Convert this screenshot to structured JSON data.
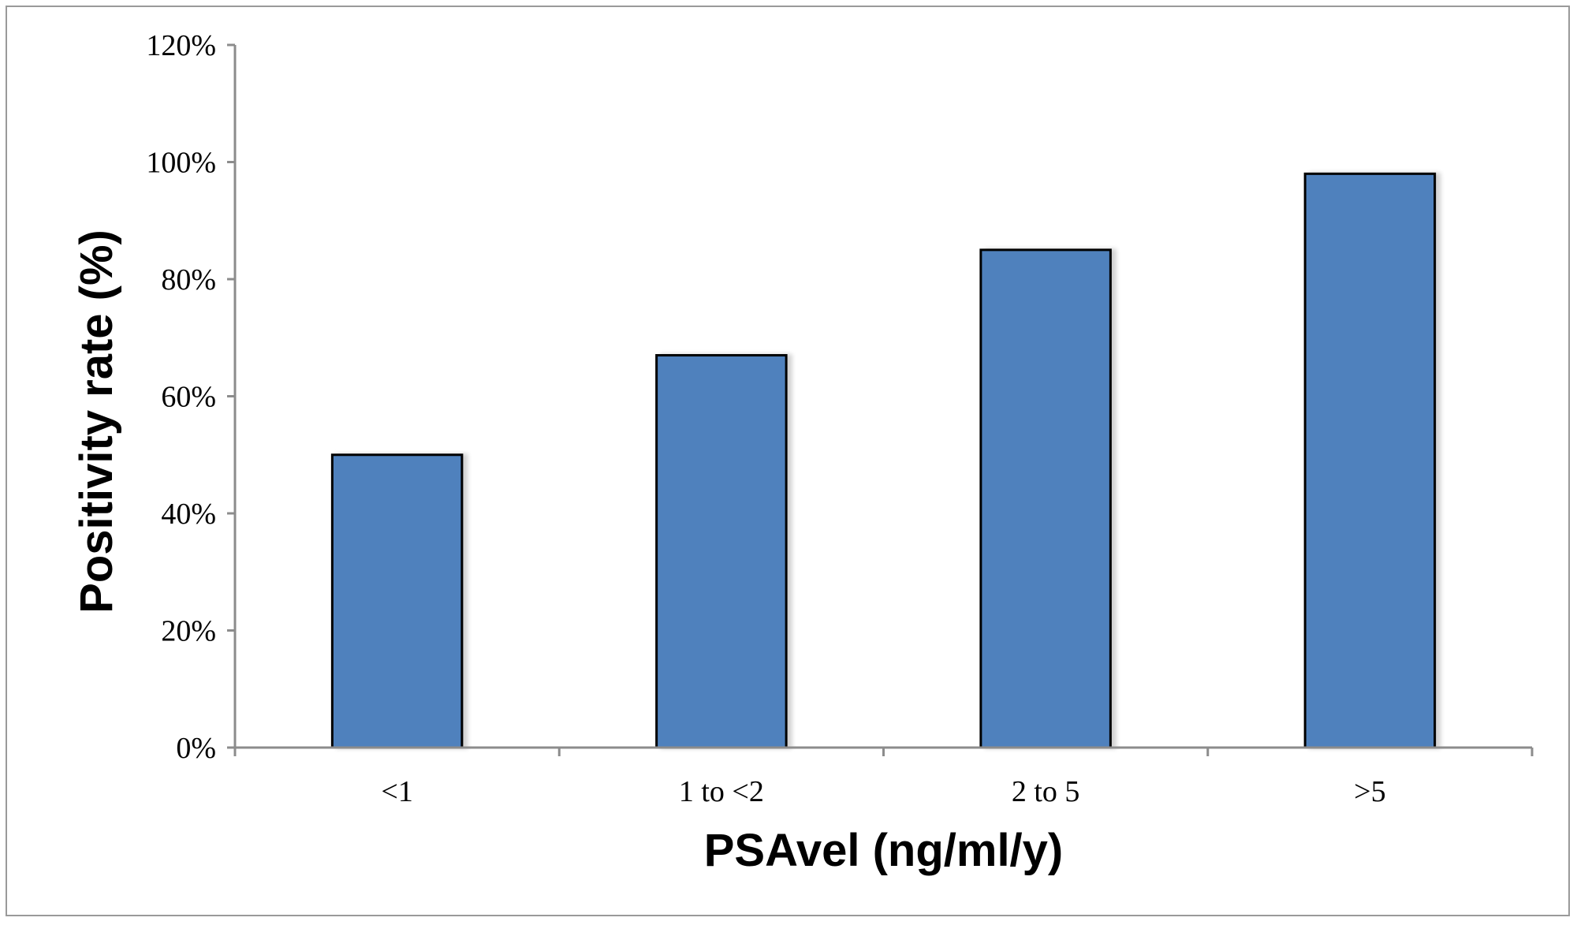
{
  "chart_data": {
    "type": "bar",
    "title": "",
    "xlabel": "PSAvel (ng/ml/y)",
    "ylabel": "Positivity rate  (%)",
    "categories": [
      "<1",
      "1 to <2",
      "2 to 5",
      ">5"
    ],
    "series": [
      {
        "values": [
          50,
          67,
          85,
          98
        ],
        "color": "#4f81bd"
      }
    ],
    "ylim": [
      0,
      120
    ],
    "y_ticks": [
      0,
      20,
      40,
      60,
      80,
      100,
      120
    ],
    "y_tick_labels": [
      "0%",
      "20%",
      "40%",
      "60%",
      "80%",
      "100%",
      "120%"
    ],
    "y_tick_format": "percent",
    "grid": false,
    "legend": "none",
    "bar_outline_color": "#000000",
    "axis_color": "#8c8c8c"
  }
}
